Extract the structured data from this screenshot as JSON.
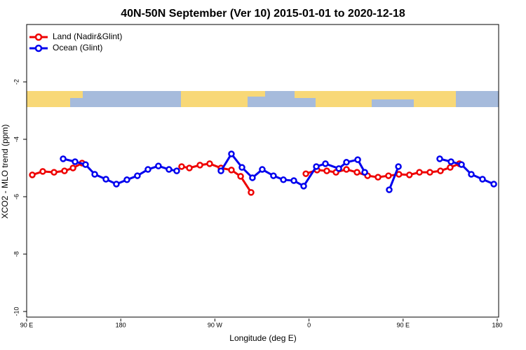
{
  "chart_data": {
    "type": "line",
    "title": "40N-50N September (Ver 10)   2015-01-01 to 2020-12-18",
    "x_label": "Longitude (deg E)",
    "y_label": "XCO2 - MLO trend (ppm)",
    "xlim": [
      90,
      540
    ],
    "xticks": [
      {
        "value": 90,
        "label": "90 E"
      },
      180,
      {
        "value": 270,
        "label": "90 W"
      },
      {
        "value": 360,
        "label": "0"
      },
      {
        "value": 450,
        "label": "90 E"
      },
      {
        "value": 540,
        "label": "180"
      }
    ],
    "ylim": [
      -10.2,
      0
    ],
    "yticks": [
      -10,
      -8,
      -6,
      -4,
      -2
    ],
    "legend": "top-left",
    "series": [
      {
        "name": "Land (Nadir&Glint)",
        "color": "#ee0000",
        "x": [
          95.4,
          105.4,
          116.2,
          126.2,
          134.3,
          143.0,
          190,
          238.2,
          245.6,
          255.7,
          265.0,
          275.8,
          285.8,
          294.6,
          304.6,
          330,
          357,
          367.7,
          377,
          385.8,
          395.8,
          405.9,
          416,
          426,
          436,
          446,
          456,
          465.6,
          475.6,
          485.7,
          495,
          503.8
        ],
        "values": [
          -5.24,
          -5.12,
          -5.15,
          -5.1,
          -5.0,
          -4.83,
          null,
          -4.95,
          -5.0,
          -4.9,
          -4.85,
          -5.0,
          -5.07,
          -5.29,
          -5.85,
          null,
          -5.2,
          -5.07,
          -5.1,
          -5.15,
          -5.05,
          -5.15,
          -5.27,
          -5.32,
          -5.27,
          -5.22,
          -5.24,
          -5.15,
          -5.15,
          -5.1,
          -4.98,
          -4.85
        ]
      },
      {
        "name": "Ocean (Glint)",
        "color": "#0000ee",
        "x": [
          124.9,
          136.3,
          146.3,
          155.1,
          165.8,
          175.8,
          185.9,
          195.9,
          206,
          216,
          226.1,
          233.5,
          255,
          275.8,
          285.8,
          295.9,
          305.9,
          315.3,
          326,
          335.5,
          345.5,
          354.9,
          367,
          375.7,
          388.5,
          395.8,
          406.6,
          413.3,
          425,
          436.7,
          445.5,
          465,
          485,
          495.8,
          505.8,
          515.2,
          525.9,
          536.7
        ],
        "values": [
          -4.68,
          -4.78,
          -4.88,
          -5.22,
          -5.39,
          -5.56,
          -5.41,
          -5.27,
          -5.05,
          -4.93,
          -5.05,
          -5.1,
          null,
          -5.1,
          -4.51,
          -4.98,
          -5.34,
          -5.05,
          -5.27,
          -5.41,
          -5.44,
          -5.63,
          -4.95,
          -4.85,
          -5.02,
          -4.8,
          -4.71,
          -5.15,
          null,
          -5.76,
          -4.95,
          null,
          -4.68,
          -4.78,
          -4.88,
          -5.22,
          -5.39,
          -5.56
        ]
      }
    ]
  }
}
